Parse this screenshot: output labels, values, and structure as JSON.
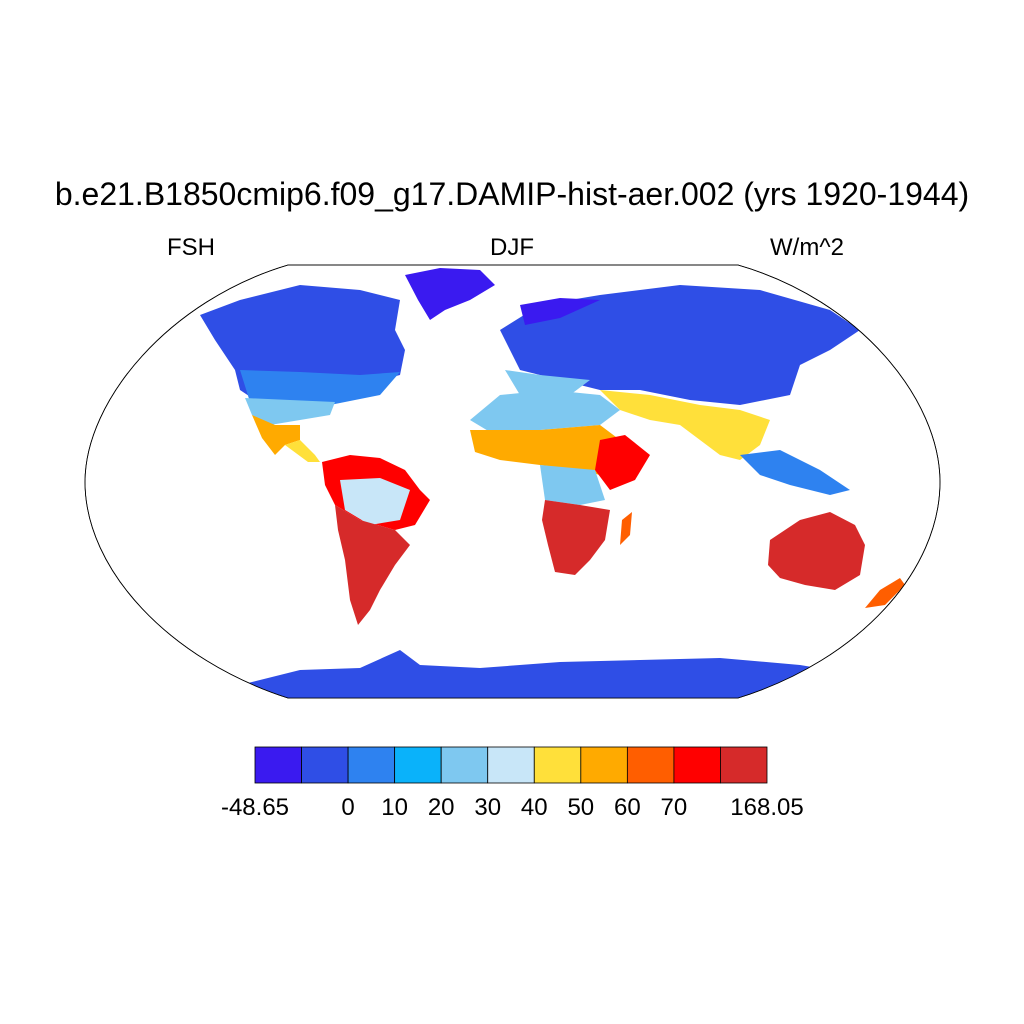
{
  "title": "b.e21.B1850cmip6.f09_g17.DAMIP-hist-aer.002 (yrs 1920-1944)",
  "left_label": "FSH",
  "center_label": "DJF",
  "right_label": "W/m^2",
  "map": {
    "projection": "robinson",
    "ocean_color": "#ffffff",
    "outline_color": "#000000",
    "regions": [
      {
        "name": "North America (arctic)",
        "fill": "#2f4ee6"
      },
      {
        "name": "Greenland",
        "fill": "#3a1af0"
      },
      {
        "name": "Eurasia (north)",
        "fill": "#2f4ee6"
      },
      {
        "name": "South America",
        "fill": "#d62a2a"
      },
      {
        "name": "Africa",
        "fill": "#ffaa00"
      },
      {
        "name": "Australia",
        "fill": "#d62a2a"
      },
      {
        "name": "Antarctica",
        "fill": "#2f4ee6"
      }
    ]
  },
  "colorbar": {
    "colors": [
      "#3a1af0",
      "#2f4ee6",
      "#2e82f0",
      "#0ab2fa",
      "#7ec8f0",
      "#c8e6f8",
      "#ffe03a",
      "#ffaa00",
      "#ff5e00",
      "#ff0000",
      "#d62a2a"
    ],
    "labels": [
      "-48.65",
      "0",
      "10",
      "20",
      "30",
      "40",
      "50",
      "60",
      "70",
      "168.05"
    ]
  }
}
